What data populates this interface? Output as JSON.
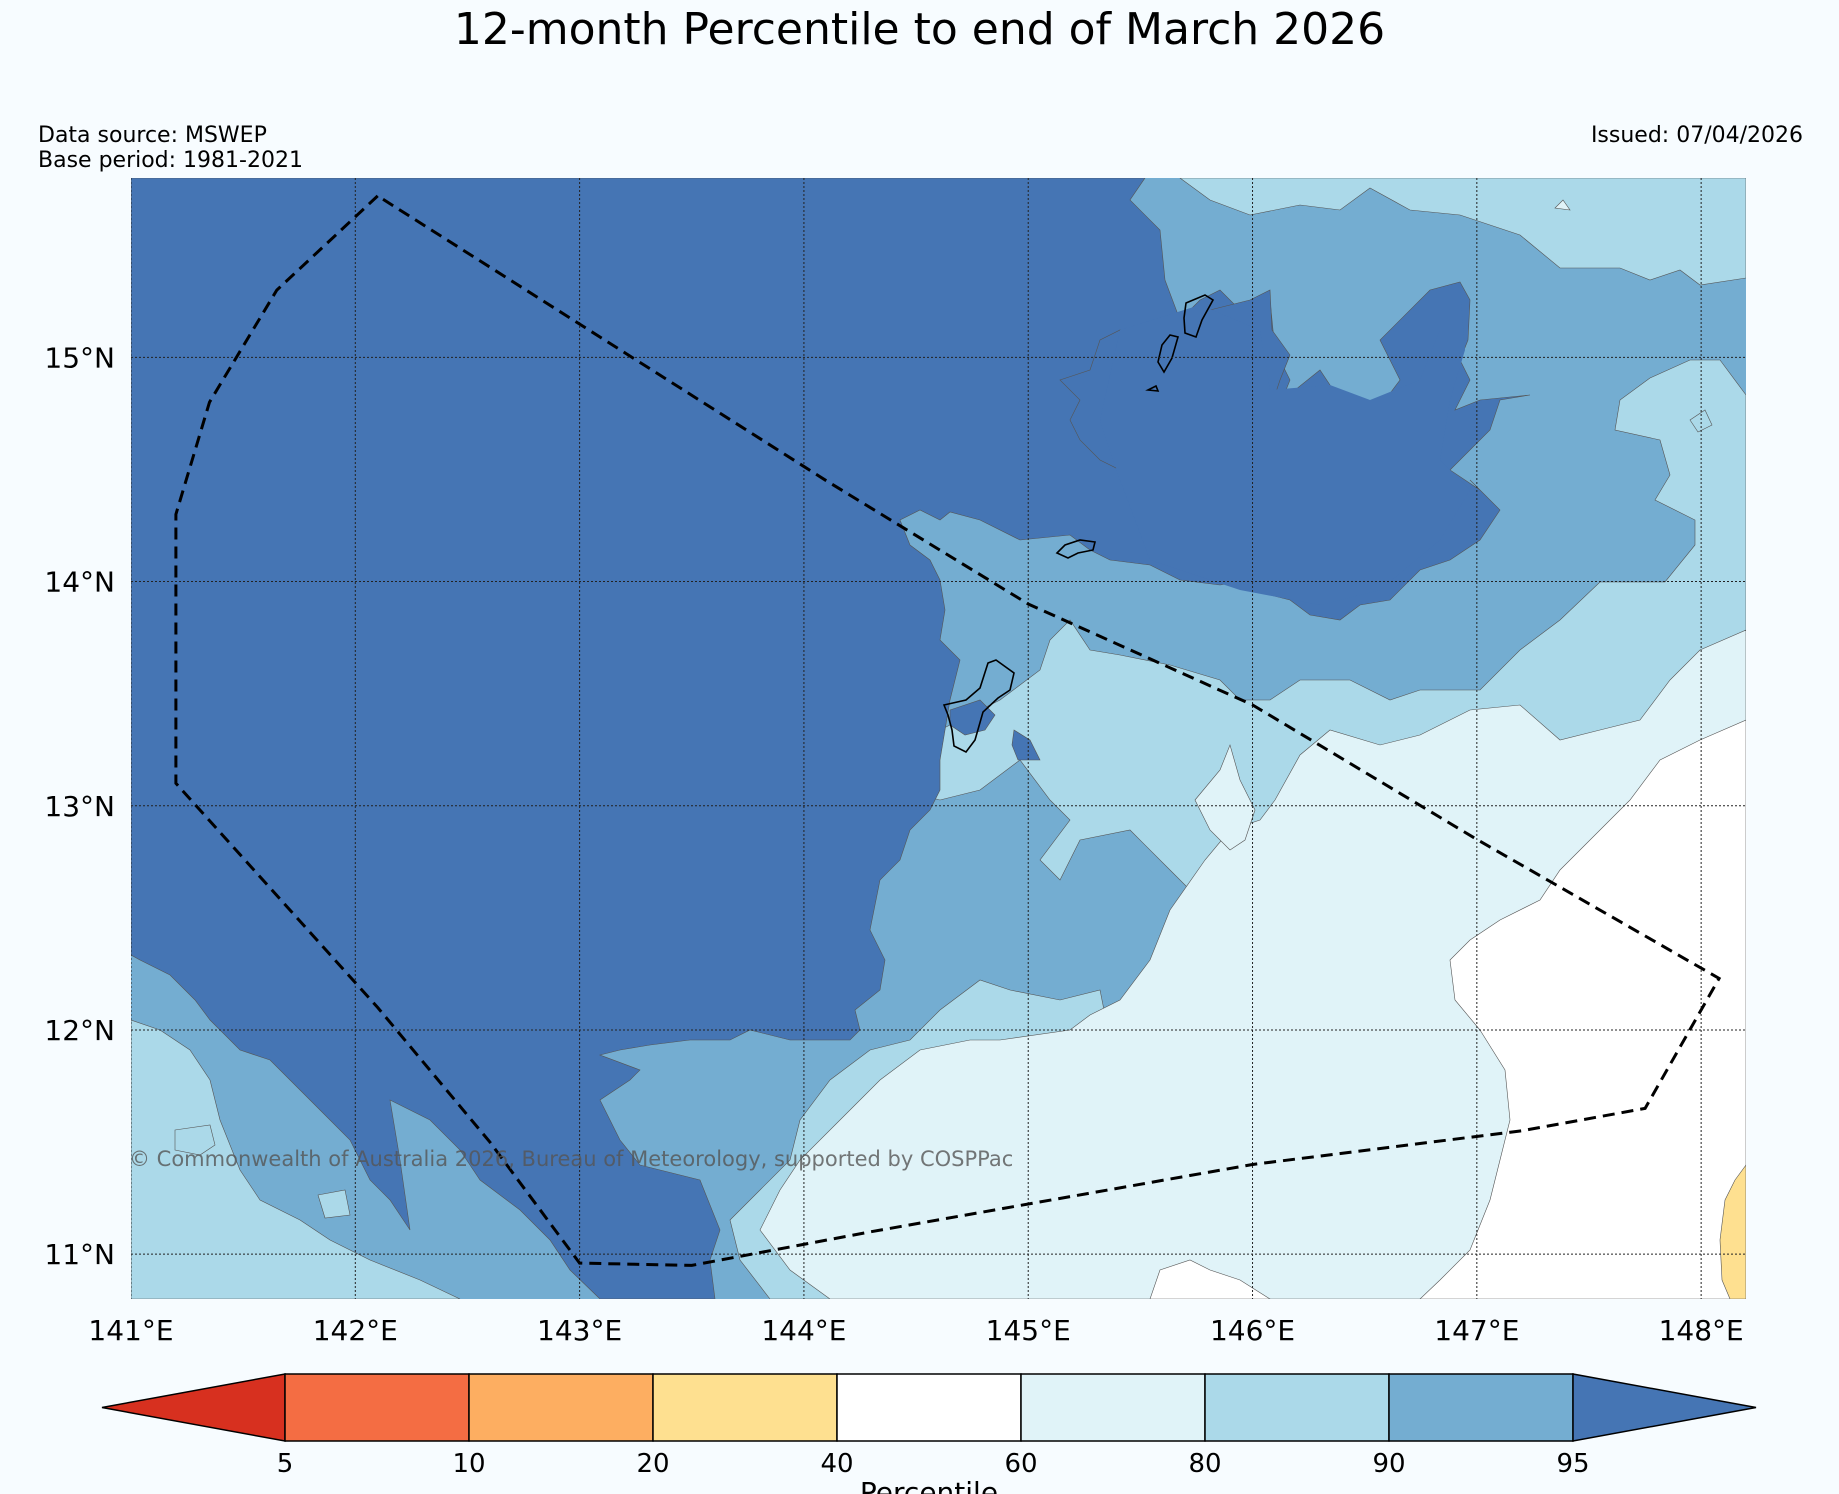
{
  "title": "12-month Percentile to end of March 2026",
  "data_source": "Data source: MSWEP",
  "base_period": "Base period: 1981-2021",
  "issued": "Issued: 07/04/2026",
  "copyright": "© Commonwealth of Australia 2026, Bureau of Meteorology, supported by COSPPac",
  "map": {
    "lon_range": [
      141.0,
      148.2
    ],
    "lat_range": [
      10.8,
      15.8
    ],
    "lat_ticks": [
      {
        "value": 15,
        "label": "15°N"
      },
      {
        "value": 14,
        "label": "14°N"
      },
      {
        "value": 13,
        "label": "13°N"
      },
      {
        "value": 12,
        "label": "12°N"
      },
      {
        "value": 11,
        "label": "11°N"
      }
    ],
    "lon_ticks": [
      {
        "value": 141,
        "label": "141°E"
      },
      {
        "value": 142,
        "label": "142°E"
      },
      {
        "value": 143,
        "label": "143°E"
      },
      {
        "value": 144,
        "label": "144°E"
      },
      {
        "value": 145,
        "label": "145°E"
      },
      {
        "value": 146,
        "label": "146°E"
      },
      {
        "value": 147,
        "label": "147°E"
      },
      {
        "value": 148,
        "label": "148°E"
      }
    ],
    "grid": true,
    "eez_boundary": [
      [
        142.1,
        15.72
      ],
      [
        141.65,
        15.3
      ],
      [
        141.35,
        14.8
      ],
      [
        141.2,
        14.3
      ],
      [
        141.2,
        13.8
      ],
      [
        141.2,
        13.1
      ],
      [
        142.1,
        12.1
      ],
      [
        142.6,
        11.5
      ],
      [
        143.0,
        10.96
      ],
      [
        143.5,
        10.95
      ],
      [
        144.3,
        11.1
      ],
      [
        146.0,
        11.4
      ],
      [
        147.2,
        11.55
      ],
      [
        147.75,
        11.65
      ],
      [
        148.08,
        12.23
      ],
      [
        147.0,
        12.85
      ],
      [
        146.0,
        13.45
      ],
      [
        145.0,
        13.9
      ],
      [
        144.1,
        14.45
      ],
      [
        142.1,
        15.72
      ]
    ]
  },
  "colorbar": {
    "title": "Percentile",
    "ticks": [
      "5",
      "10",
      "20",
      "40",
      "60",
      "80",
      "90",
      "95"
    ],
    "colors": [
      "#d7301f",
      "#f46d43",
      "#fdae61",
      "#fee090",
      "#ffffff",
      "#e0f3f8",
      "#abd9e9",
      "#74add1",
      "#4575b4"
    ],
    "extend": "both"
  }
}
